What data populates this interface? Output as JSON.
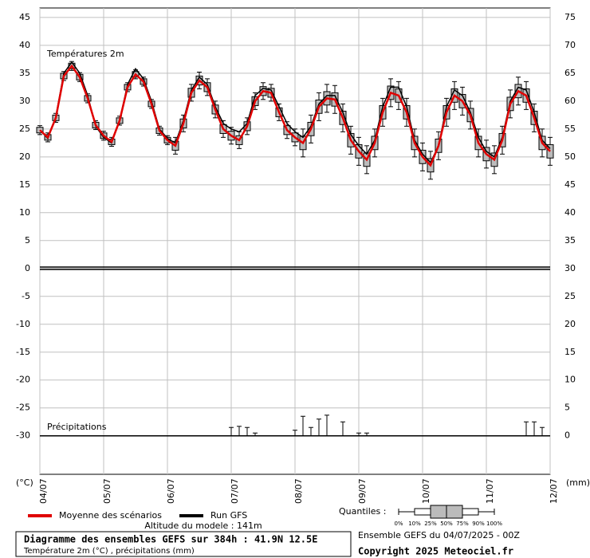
{
  "chart_data": {
    "type": "ensemble",
    "title": "Diagramme des ensembles GEFS sur 384h : 41.9N 12.5E",
    "subtitle": "Température 2m (°C) , précipitations (mm)",
    "temp_label": "Températures 2m",
    "precip_label": "Précipitations",
    "altitude": "Altitude du modele : 141m",
    "run_info": "Ensemble GEFS du 04/07/2025 - 00Z",
    "copyright": "Copyright 2025 Meteociel.fr",
    "ylabel": "(°C)",
    "y2label": "(mm)",
    "x": [
      0,
      6,
      12,
      18,
      24,
      30,
      36,
      42,
      48,
      54,
      60,
      66,
      72,
      78,
      84,
      90,
      96,
      102,
      108,
      114,
      120,
      126,
      132,
      138,
      144,
      150,
      156,
      162,
      168,
      174,
      180,
      186,
      192,
      198,
      204,
      210,
      216,
      222,
      228,
      234,
      240,
      246,
      252,
      258,
      264,
      270,
      276,
      282,
      288,
      294,
      300,
      306,
      312,
      318,
      324,
      330,
      336,
      342,
      348,
      354,
      360,
      366,
      372,
      378,
      384
    ],
    "xlim": [
      0,
      384
    ],
    "xticks": [
      {
        "value": 0,
        "label": "04/07"
      },
      {
        "value": 48,
        "label": "05/07"
      },
      {
        "value": 96,
        "label": "06/07"
      },
      {
        "value": 144,
        "label": "07/07"
      },
      {
        "value": 192,
        "label": "08/07"
      },
      {
        "value": 240,
        "label": "09/07"
      },
      {
        "value": 288,
        "label": "10/07"
      },
      {
        "value": 336,
        "label": "11/07"
      },
      {
        "value": 384,
        "label": "12/07"
      }
    ],
    "ylim": [
      -36.9,
      46.7
    ],
    "yticks": [
      45,
      40,
      35,
      30,
      25,
      20,
      15,
      10,
      5,
      0,
      -5,
      -10,
      -15,
      -20,
      -25,
      -30
    ],
    "y2lim": [
      -6.9,
      76.7
    ],
    "y2ticks": [
      75,
      70,
      65,
      60,
      55,
      50,
      45,
      40,
      35,
      30,
      25,
      20,
      15,
      10,
      5,
      0
    ],
    "grid": true,
    "series": [
      {
        "name": "Moyenne des scénarios",
        "color": "#e00000",
        "values": [
          24.8,
          23.5,
          27,
          34.5,
          36.3,
          34.3,
          30.5,
          25.7,
          23.8,
          22.7,
          26.5,
          32.5,
          34.8,
          33.5,
          29.5,
          24.7,
          23,
          22,
          26,
          31.5,
          33.7,
          32.5,
          28.5,
          25,
          23.8,
          23,
          25.5,
          30,
          31.8,
          31.5,
          28,
          24.8,
          23.5,
          22.5,
          25,
          29,
          30.5,
          30.3,
          27,
          23,
          21,
          19.5,
          22.5,
          28,
          31.5,
          31,
          28,
          22.5,
          20,
          18.5,
          22,
          28,
          31,
          30,
          27.5,
          22.5,
          20.5,
          19.5,
          23,
          29.5,
          31.8,
          31,
          27,
          22.5,
          21
        ]
      },
      {
        "name": "Run GFS",
        "color": "#000000",
        "values": [
          24.8,
          23.3,
          27.2,
          35,
          37,
          35,
          31,
          25.5,
          23.5,
          22.5,
          26.5,
          33,
          35.8,
          34,
          30,
          25,
          23.3,
          22.5,
          26.5,
          32,
          34.3,
          33,
          29,
          26,
          25,
          24.5,
          26,
          31,
          32.3,
          32,
          29,
          26,
          24.5,
          23.5,
          25.5,
          29.5,
          31,
          31,
          28,
          24,
          22,
          20.5,
          23,
          29,
          32.5,
          32.5,
          29,
          23,
          20.5,
          19,
          22,
          29,
          32,
          31,
          28,
          23.5,
          21,
          20,
          23.5,
          30,
          32.5,
          32,
          28,
          23,
          21.5
        ]
      }
    ],
    "quantiles": {
      "label": "Quantiles :",
      "levels": [
        "0%",
        "10%",
        "25%",
        "50%",
        "75%",
        "90%",
        "100%"
      ],
      "box_color": "#bbbbbb",
      "q10": [
        24,
        22.7,
        26.2,
        33.7,
        35.5,
        33.5,
        29.7,
        24.9,
        23,
        21.9,
        25.7,
        31.7,
        34,
        32.7,
        28.7,
        23.9,
        22.2,
        20.5,
        24.5,
        30,
        32.2,
        31,
        27,
        23.5,
        22.3,
        21.5,
        24,
        28.5,
        30.3,
        30,
        26.5,
        23.3,
        22,
        20,
        22.5,
        26.5,
        28,
        27.8,
        24.5,
        20.5,
        18.5,
        17,
        20,
        25.5,
        29,
        28.5,
        25.5,
        20,
        17.5,
        16,
        19.5,
        25.5,
        28.5,
        27.5,
        25,
        20,
        18,
        17,
        20.5,
        27,
        29.3,
        28.5,
        24.5,
        20,
        18.5
      ],
      "q25": [
        24.3,
        23,
        26.5,
        34,
        35.8,
        33.8,
        30,
        25.2,
        23.3,
        22.2,
        26,
        32,
        34.3,
        33,
        29,
        24.2,
        22.5,
        21.2,
        25.2,
        30.7,
        32.9,
        31.7,
        27.7,
        24.2,
        23,
        22.2,
        24.7,
        29.2,
        31,
        30.7,
        27.2,
        24,
        22.7,
        21.3,
        23.8,
        27.8,
        29.3,
        29.1,
        25.8,
        21.8,
        19.8,
        18.3,
        21.3,
        26.8,
        30.3,
        29.8,
        26.8,
        21.3,
        18.8,
        17.3,
        20.8,
        26.8,
        29.8,
        28.8,
        26.3,
        21.3,
        19.3,
        18.3,
        21.8,
        28.3,
        30.6,
        29.8,
        25.8,
        21.3,
        19.8
      ],
      "q75": [
        25.3,
        24,
        27.5,
        35,
        36.8,
        34.8,
        31,
        26.2,
        24.3,
        23.2,
        27,
        33,
        35.3,
        34,
        30,
        25.2,
        23.5,
        22.8,
        26.8,
        32.3,
        34.5,
        33.3,
        29.3,
        25.8,
        24.6,
        23.8,
        26.3,
        30.8,
        32.6,
        32.3,
        28.8,
        25.6,
        24.3,
        23.7,
        26.2,
        30.2,
        31.7,
        31.5,
        28.2,
        24.2,
        22.2,
        20.7,
        23.7,
        29.2,
        32.7,
        32.2,
        29.2,
        23.7,
        21.2,
        19.7,
        23.2,
        29.2,
        32.2,
        31.2,
        28.7,
        23.7,
        21.7,
        20.7,
        24.2,
        30.7,
        33,
        32.2,
        28.2,
        23.7,
        22.2
      ],
      "q90": [
        25.6,
        24.3,
        27.8,
        35.3,
        37.1,
        35.1,
        31.3,
        26.5,
        24.6,
        23.5,
        27.3,
        33.3,
        35.6,
        34.3,
        30.3,
        25.5,
        23.8,
        23.5,
        27.5,
        33,
        35.2,
        34,
        30,
        26.5,
        25.3,
        24.5,
        27,
        31.5,
        33.3,
        33,
        29.5,
        26.3,
        25,
        25,
        27.5,
        31.5,
        33,
        32.8,
        29.5,
        25.5,
        23.5,
        22,
        25,
        30.5,
        34,
        33.5,
        30.5,
        25,
        22.5,
        21,
        24.5,
        30.5,
        33.5,
        32.5,
        30,
        25,
        23,
        22,
        25.5,
        32,
        34.3,
        33.5,
        29.5,
        25,
        23.5
      ]
    },
    "precipitation": {
      "axis": "y2",
      "values": [
        0,
        0,
        0,
        0,
        0,
        0,
        0,
        0,
        0,
        0,
        0,
        0,
        0,
        0,
        0,
        0,
        0,
        0,
        0,
        0,
        0,
        0,
        0,
        0,
        1.5,
        1.7,
        1.5,
        0.5,
        0,
        0,
        0,
        0,
        1,
        3.5,
        1.5,
        3,
        3.7,
        0,
        2.5,
        0,
        0.5,
        0.5,
        0,
        0,
        0,
        0,
        0,
        0,
        0,
        0,
        0,
        0,
        0,
        0,
        0,
        0,
        0,
        0,
        0,
        0,
        0,
        2.5,
        2.5,
        1.5,
        0
      ]
    }
  }
}
